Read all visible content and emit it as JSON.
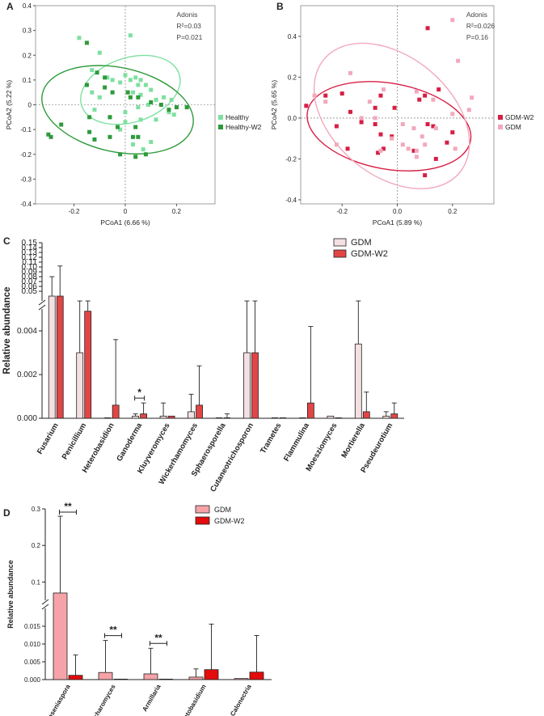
{
  "chart_data": [
    {
      "panel": "A",
      "type": "scatter",
      "xlabel": "PCoA1 (6.66 %)",
      "ylabel": "PCoA2 (5.22 %)",
      "xlim": [
        -0.35,
        0.35
      ],
      "ylim": [
        -0.4,
        0.4
      ],
      "xticks": [
        "-0.2",
        "0",
        "0.2"
      ],
      "xtick_values": [
        -0.2,
        0,
        0.2
      ],
      "yticks": [
        "-0.4",
        "-0.3",
        "-0.2",
        "-0.1",
        "0",
        "0.1",
        "0.2",
        "0.3",
        "0.4"
      ],
      "ytick_values": [
        -0.4,
        -0.3,
        -0.2,
        -0.1,
        0,
        0.1,
        0.2,
        0.3,
        0.4
      ],
      "annotation": {
        "title": "Adonis",
        "r2": "R²=0.03",
        "p": "P=0.021"
      },
      "legend_position": "right",
      "series": [
        {
          "name": "Healthy",
          "color": "#7ee0a0",
          "ellipse": {
            "cx": 0.02,
            "cy": 0.06,
            "rx": 0.2,
            "ry": 0.13,
            "angle": -18
          },
          "points": [
            [
              -0.18,
              0.27
            ],
            [
              0.02,
              0.28
            ],
            [
              -0.1,
              0.21
            ],
            [
              -0.13,
              0.14
            ],
            [
              -0.07,
              0.11
            ],
            [
              -0.05,
              0.1
            ],
            [
              -0.02,
              0.09
            ],
            [
              0.0,
              0.12
            ],
            [
              0.02,
              0.1
            ],
            [
              0.04,
              0.11
            ],
            [
              0.06,
              0.1
            ],
            [
              0.08,
              0.08
            ],
            [
              0.05,
              0.08
            ],
            [
              0.1,
              0.06
            ],
            [
              -0.13,
              0.05
            ],
            [
              -0.1,
              0.03
            ],
            [
              0.03,
              0.05
            ],
            [
              0.06,
              0.04
            ],
            [
              0.12,
              0.02
            ],
            [
              0.15,
              0.03
            ],
            [
              0.18,
              0.02
            ],
            [
              0.09,
              0.0
            ],
            [
              0.05,
              -0.01
            ],
            [
              0.0,
              -0.03
            ],
            [
              -0.06,
              -0.05
            ],
            [
              0.0,
              -0.07
            ],
            [
              0.06,
              -0.06
            ],
            [
              0.12,
              -0.06
            ],
            [
              0.17,
              -0.03
            ],
            [
              0.19,
              -0.04
            ],
            [
              -0.12,
              -0.02
            ],
            [
              -0.02,
              -0.1
            ],
            [
              0.03,
              -0.16
            ],
            [
              0.07,
              -0.18
            ],
            [
              0.1,
              -0.15
            ]
          ]
        },
        {
          "name": "Healthy-W2",
          "color": "#2e9a3a",
          "ellipse": {
            "cx": -0.03,
            "cy": -0.02,
            "rx": 0.3,
            "ry": 0.17,
            "angle": 12
          },
          "points": [
            [
              -0.15,
              0.25
            ],
            [
              -0.11,
              0.13
            ],
            [
              -0.08,
              0.11
            ],
            [
              -0.15,
              0.08
            ],
            [
              -0.08,
              0.07
            ],
            [
              -0.05,
              0.05
            ],
            [
              0.01,
              0.05
            ],
            [
              0.02,
              0.03
            ],
            [
              0.05,
              0.03
            ],
            [
              0.1,
              0.01
            ],
            [
              0.14,
              0.0
            ],
            [
              0.2,
              -0.01
            ],
            [
              0.24,
              -0.01
            ],
            [
              0.17,
              -0.02
            ],
            [
              -0.25,
              -0.08
            ],
            [
              -0.3,
              -0.12
            ],
            [
              -0.29,
              -0.13
            ],
            [
              -0.14,
              -0.11
            ],
            [
              -0.12,
              -0.14
            ],
            [
              -0.06,
              -0.13
            ],
            [
              -0.03,
              -0.09
            ],
            [
              -0.06,
              -0.05
            ],
            [
              0.04,
              -0.09
            ],
            [
              0.05,
              -0.13
            ],
            [
              -0.02,
              -0.2
            ],
            [
              0.04,
              -0.21
            ],
            [
              0.08,
              -0.2
            ],
            [
              -0.14,
              -0.05
            ],
            [
              0.03,
              -0.13
            ]
          ]
        }
      ]
    },
    {
      "panel": "B",
      "type": "scatter",
      "xlabel": "PCoA1 (5.89 %)",
      "ylabel": "PCoA2 (5.65 %)",
      "xlim": [
        -0.35,
        0.35
      ],
      "ylim": [
        -0.42,
        0.55
      ],
      "xticks": [
        "-0.2",
        "0.0",
        "0.2"
      ],
      "xtick_values": [
        -0.2,
        0.0,
        0.2
      ],
      "yticks": [
        "-0.4",
        "-0.2",
        "0.0",
        "0.2",
        "0.4"
      ],
      "ytick_values": [
        -0.4,
        -0.2,
        0.0,
        0.2,
        0.4
      ],
      "annotation": {
        "title": "Adonis",
        "r2": "R²=0.026",
        "p": "P=0.16"
      },
      "legend_position": "right",
      "series": [
        {
          "name": "GDM-W2",
          "color": "#d61f45",
          "ellipse": {
            "cx": -0.03,
            "cy": -0.04,
            "rx": 0.3,
            "ry": 0.21,
            "angle": 10
          },
          "points": [
            [
              0.11,
              0.44
            ],
            [
              -0.33,
              0.06
            ],
            [
              -0.26,
              0.11
            ],
            [
              -0.2,
              0.12
            ],
            [
              -0.06,
              0.11
            ],
            [
              0.08,
              0.09
            ],
            [
              0.15,
              0.14
            ],
            [
              0.1,
              0.11
            ],
            [
              -0.08,
              0.05
            ],
            [
              -0.01,
              0.05
            ],
            [
              -0.17,
              0.03
            ],
            [
              -0.13,
              -0.02
            ],
            [
              -0.08,
              -0.03
            ],
            [
              0.11,
              -0.03
            ],
            [
              0.13,
              -0.04
            ],
            [
              -0.22,
              -0.04
            ],
            [
              -0.06,
              -0.08
            ],
            [
              -0.02,
              -0.09
            ],
            [
              0.2,
              -0.07
            ],
            [
              -0.05,
              -0.15
            ],
            [
              -0.07,
              -0.17
            ],
            [
              0.06,
              -0.16
            ],
            [
              0.14,
              -0.2
            ],
            [
              0.1,
              -0.28
            ],
            [
              0.18,
              -0.12
            ],
            [
              -0.18,
              -0.15
            ]
          ]
        },
        {
          "name": "GDM",
          "color": "#f2a9bc",
          "ellipse": {
            "cx": -0.02,
            "cy": 0.01,
            "rx": 0.32,
            "ry": 0.29,
            "angle": 40
          },
          "points": [
            [
              0.2,
              0.48
            ],
            [
              0.22,
              0.28
            ],
            [
              -0.17,
              0.22
            ],
            [
              -0.26,
              0.08
            ],
            [
              -0.3,
              0.11
            ],
            [
              -0.05,
              0.14
            ],
            [
              0.07,
              0.13
            ],
            [
              0.13,
              0.09
            ],
            [
              0.27,
              0.1
            ],
            [
              0.2,
              0.02
            ],
            [
              -0.1,
              0.08
            ],
            [
              -0.13,
              0.0
            ],
            [
              -0.08,
              0.0
            ],
            [
              0.02,
              -0.03
            ],
            [
              0.06,
              -0.05
            ],
            [
              0.09,
              -0.09
            ],
            [
              0.14,
              -0.05
            ],
            [
              -0.02,
              -0.1
            ],
            [
              0.02,
              -0.13
            ],
            [
              0.04,
              -0.15
            ],
            [
              0.07,
              -0.16
            ],
            [
              -0.06,
              -0.16
            ],
            [
              0.1,
              -0.13
            ],
            [
              0.26,
              0.04
            ],
            [
              0.21,
              -0.15
            ],
            [
              -0.22,
              -0.13
            ],
            [
              0.07,
              -0.19
            ]
          ]
        }
      ]
    },
    {
      "panel": "C",
      "type": "bar",
      "ylabel": "Relative abundance",
      "ylim_lower": [
        0,
        0.005
      ],
      "ylim_upper": [
        0.03,
        0.15
      ],
      "yticks_lower": [
        "0.000",
        "0.002",
        "0.004"
      ],
      "ytick_values_lower": [
        0,
        0.002,
        0.004
      ],
      "yticks_upper": [
        "0.05",
        "0.06",
        "0.07",
        "0.08",
        "0.09",
        "0.10",
        "0.11",
        "0.12",
        "0.13",
        "0.14",
        "0.15"
      ],
      "ytick_values_upper": [
        0.05,
        0.06,
        0.07,
        0.08,
        0.09,
        0.1,
        0.11,
        0.12,
        0.13,
        0.14,
        0.15
      ],
      "categories": [
        "Fusarium",
        "Penicillium",
        "Heterobasidion",
        "Ganoderma",
        "Kluyveromyces",
        "Wickerhamomyces",
        "Sphaerosporella",
        "Cutaneotrichosporon",
        "Trametes",
        "Flammulina",
        "Moesziomyces",
        "Mortierella",
        "Pseudeurotium"
      ],
      "series": [
        {
          "name": "GDM",
          "color": "#f4dfe2",
          "values": [
            0.04,
            0.003,
            0.0,
            0.0001,
            0.0001,
            0.0003,
            0.0,
            0.003,
            0.0,
            0.0,
            0.0001,
            0.0034,
            0.0001
          ],
          "errors": [
            0.04,
            0.0028,
            0.0,
            0.0001,
            0.0006,
            0.0008,
            0.0,
            0.0028,
            0.0,
            0.0,
            0.0,
            0.0026,
            0.0002
          ]
        },
        {
          "name": "GDM-W2",
          "color": "#e24545",
          "values": [
            0.04,
            0.0049,
            0.0006,
            0.0002,
            0.0001,
            0.0006,
            0.0,
            0.003,
            0.0,
            0.0007,
            0.0,
            0.0003,
            0.0002
          ],
          "errors": [
            0.062,
            0.0011,
            0.003,
            0.0005,
            0.0,
            0.0018,
            0.0002,
            0.0024,
            0.0,
            0.0035,
            0.0,
            0.0009,
            0.0005
          ]
        }
      ],
      "significance": [
        {
          "category": "Ganoderma",
          "label": "*"
        }
      ],
      "legend_position": "top-right"
    },
    {
      "panel": "D",
      "type": "bar",
      "ylabel": "Relative abundance",
      "ylim_lower": [
        0,
        0.02
      ],
      "ylim_upper": [
        0.05,
        0.3
      ],
      "yticks_lower": [
        "0.000",
        "0.005",
        "0.010",
        "0.015"
      ],
      "ytick_values_lower": [
        0,
        0.005,
        0.01,
        0.015
      ],
      "yticks_upper": [
        "0.1",
        "0.2",
        "0.3"
      ],
      "ytick_values_upper": [
        0.1,
        0.2,
        0.3
      ],
      "categories": [
        "Hanseniaspora",
        "Zygosaccharomyces",
        "Armillaria",
        "Ceratobasidium",
        "Calonectria"
      ],
      "series": [
        {
          "name": "GDM",
          "color": "#f5a3a8",
          "values": [
            0.07,
            0.002,
            0.0016,
            0.0007,
            0.0003
          ],
          "errors": [
            0.21,
            0.009,
            0.0072,
            0.0023,
            0.0
          ]
        },
        {
          "name": "GDM-W2",
          "color": "#e30b0b",
          "values": [
            0.0012,
            0.0,
            0.0,
            0.0028,
            0.0021
          ],
          "errors": [
            0.0057,
            0.0,
            0.0,
            0.0128,
            0.0103
          ]
        }
      ],
      "significance": [
        {
          "category": "Hanseniaspora",
          "label": "**"
        },
        {
          "category": "Zygosaccharomyces",
          "label": "**"
        },
        {
          "category": "Armillaria",
          "label": "**"
        }
      ],
      "legend_position": "top-right"
    }
  ]
}
